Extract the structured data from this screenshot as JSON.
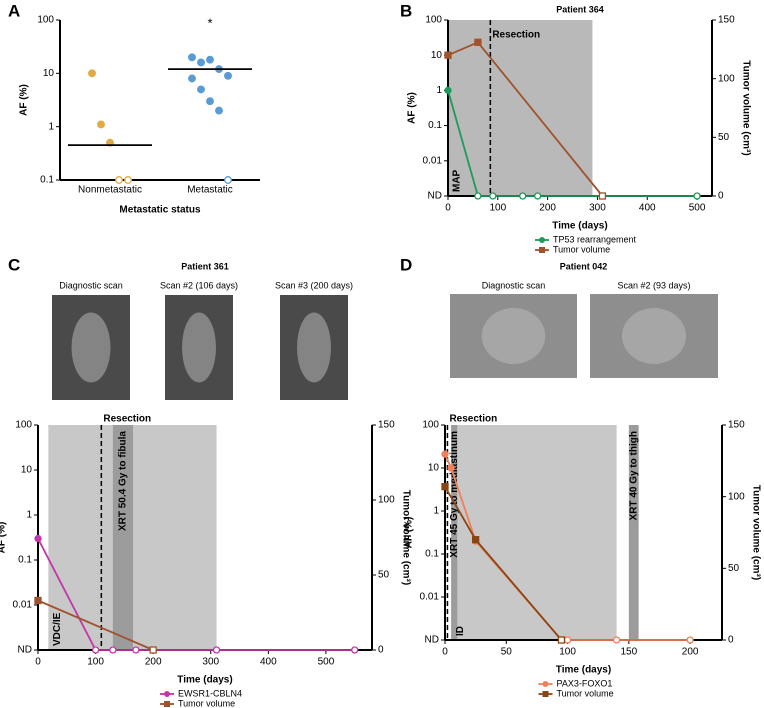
{
  "chart_data": [
    {
      "type": "dot",
      "panel": "A",
      "xlabel": "Metastatic status",
      "ylabel": "AF (%)",
      "log_y": true,
      "categories": [
        "Nonmetastatic",
        "Metastatic"
      ],
      "values": [
        [
          10,
          1.1,
          0.5,
          0.1,
          0.1
        ],
        [
          20,
          16,
          18,
          12,
          9,
          8,
          5,
          3,
          2,
          0.1
        ]
      ],
      "medians": [
        0.45,
        12
      ],
      "colors": [
        "#e0aa45",
        "#5b9bd5"
      ],
      "annotation": "*",
      "ylim": [
        0.1,
        100
      ],
      "yticks": [
        0.1,
        1,
        10,
        100
      ]
    },
    {
      "type": "line",
      "panel": "B",
      "title": "Patient 364",
      "xlabel": "Time (days)",
      "ylabel": "AF (%)",
      "y2label": "Tumor volume (cm³)",
      "log_y": true,
      "xlim": [
        0,
        530
      ],
      "xticks": [
        0,
        100,
        200,
        300,
        400,
        500
      ],
      "ylim": [
        0.001,
        100
      ],
      "yticks": [
        {
          "value": 0.001,
          "label": "ND"
        },
        0.01,
        0.1,
        1,
        10,
        100
      ],
      "y2lim": [
        0,
        150
      ],
      "y2ticks": [
        0,
        50,
        100,
        150
      ],
      "regions": [
        {
          "x": [
            0,
            290
          ],
          "color": "#b9b9b9",
          "label": "MAP"
        }
      ],
      "annotations": [
        {
          "text": "Resection",
          "x": 85
        }
      ],
      "series": [
        {
          "name": "TP53 rearrangement",
          "color": "#1e9a5a",
          "marker": "circle",
          "x": [
            0,
            60,
            90,
            150,
            180,
            310,
            500
          ],
          "values": [
            1,
            0.001,
            0.001,
            0.001,
            0.001,
            0.001,
            0.001
          ]
        },
        {
          "name": "Tumor volume",
          "color": "#a0522d",
          "marker": "square",
          "axis": "y2",
          "x": [
            0,
            60,
            310
          ],
          "values": [
            120,
            131,
            0
          ]
        }
      ]
    },
    {
      "type": "line",
      "panel": "C",
      "title": "Patient 361",
      "xlabel": "Time (days)",
      "ylabel": "AF (%)",
      "y2label": "Tumor volume (cm³)",
      "log_y": true,
      "images": [
        {
          "caption": "Diagnostic scan"
        },
        {
          "caption": "Scan #2 (106 days)"
        },
        {
          "caption": "Scan #3 (200 days)"
        }
      ],
      "xlim": [
        0,
        580
      ],
      "xticks": [
        0,
        100,
        200,
        300,
        400,
        500
      ],
      "ylim": [
        0.001,
        100
      ],
      "yticks": [
        {
          "value": 0.001,
          "label": "ND"
        },
        0.01,
        0.1,
        1,
        10,
        100
      ],
      "y2lim": [
        0,
        150
      ],
      "y2ticks": [
        0,
        50,
        100,
        150
      ],
      "regions": [
        {
          "x": [
            18,
            310
          ],
          "color": "#c8c8c8",
          "label": "VDC/IE"
        },
        {
          "x": [
            130,
            165
          ],
          "color": "#9c9c9c",
          "label": "XRT 50.4 Gy to fibula"
        }
      ],
      "annotations": [
        {
          "text": "Resection",
          "x": 110
        }
      ],
      "series": [
        {
          "name": "EWSR1-CBLN4",
          "color": "#c535a8",
          "marker": "circle",
          "x": [
            0,
            100,
            130,
            170,
            200,
            310,
            550
          ],
          "values": [
            0.3,
            0.001,
            0.001,
            0.001,
            0.001,
            0.001,
            0.001
          ]
        },
        {
          "name": "Tumor volume",
          "color": "#a0522d",
          "marker": "square",
          "axis": "y2",
          "x": [
            0,
            200
          ],
          "values": [
            33,
            0
          ]
        }
      ]
    },
    {
      "type": "line",
      "panel": "D",
      "title": "Patient 042",
      "xlabel": "Time (days)",
      "ylabel": "AF (%)",
      "y2label": "Tumor volume (cm³)",
      "log_y": true,
      "images": [
        {
          "caption": "Diagnostic scan"
        },
        {
          "caption": "Scan #2 (93 days)"
        }
      ],
      "xlim": [
        0,
        226
      ],
      "xticks": [
        0,
        50,
        100,
        150,
        200
      ],
      "ylim": [
        0.001,
        100
      ],
      "yticks": [
        {
          "value": 0.001,
          "label": "ND"
        },
        0.01,
        0.1,
        1,
        10,
        100
      ],
      "y2lim": [
        0,
        150
      ],
      "y2ticks": [
        0,
        50,
        100,
        150
      ],
      "regions": [
        {
          "x": [
            5,
            140
          ],
          "color": "#c8c8c8",
          "label": "ID"
        },
        {
          "x": [
            5,
            10
          ],
          "color": "#9c9c9c",
          "label": "XRT 45 Gy to mediastinum"
        },
        {
          "x": [
            150,
            158
          ],
          "color": "#9c9c9c",
          "label": "XRT 40 Gy to thigh"
        }
      ],
      "annotations": [
        {
          "text": "Resection",
          "x": 2
        }
      ],
      "series": [
        {
          "name": "PAX3-FOXO1",
          "color": "#f07f5a",
          "marker": "circle",
          "x": [
            0,
            5,
            25,
            95,
            100,
            140,
            200
          ],
          "values": [
            21,
            10,
            0.2,
            0.001,
            0.001,
            0.001,
            0.001
          ]
        },
        {
          "name": "Tumor volume",
          "color": "#8b4513",
          "marker": "square",
          "axis": "y2",
          "x": [
            0,
            25,
            95
          ],
          "values": [
            107,
            70,
            0
          ]
        }
      ]
    }
  ]
}
